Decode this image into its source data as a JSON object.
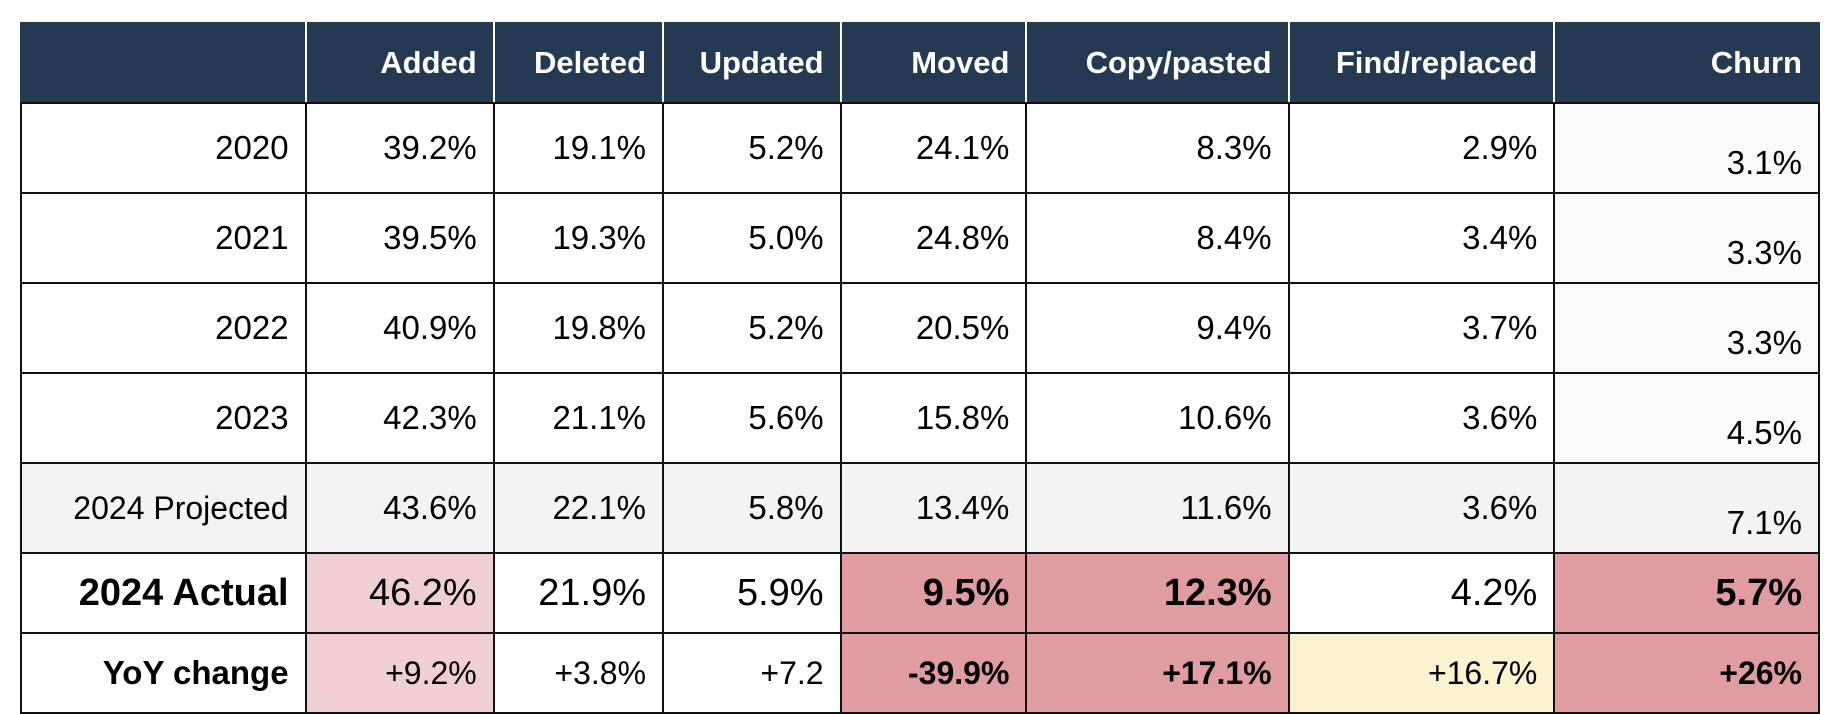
{
  "table": {
    "headers": [
      "",
      "Added",
      "Deleted",
      "Updated",
      "Moved",
      "Copy/pasted",
      "Find/replaced",
      "Churn"
    ],
    "rows": [
      {
        "label": "2020",
        "cells": [
          "39.2%",
          "19.1%",
          "5.2%",
          "24.1%",
          "8.3%",
          "2.9%",
          "3.1%"
        ]
      },
      {
        "label": "2021",
        "cells": [
          "39.5%",
          "19.3%",
          "5.0%",
          "24.8%",
          "8.4%",
          "3.4%",
          "3.3%"
        ]
      },
      {
        "label": "2022",
        "cells": [
          "40.9%",
          "19.8%",
          "5.2%",
          "20.5%",
          "9.4%",
          "3.7%",
          "3.3%"
        ]
      },
      {
        "label": "2023",
        "cells": [
          "42.3%",
          "21.1%",
          "5.6%",
          "15.8%",
          "10.6%",
          "3.6%",
          "4.5%"
        ]
      },
      {
        "label": "2024 Projected",
        "cells": [
          "43.6%",
          "22.1%",
          "5.8%",
          "13.4%",
          "11.6%",
          "3.6%",
          "7.1%"
        ]
      },
      {
        "label": "2024 Actual",
        "cells": [
          "46.2%",
          "21.9%",
          "5.9%",
          "9.5%",
          "12.3%",
          "4.2%",
          "5.7%"
        ]
      },
      {
        "label": "YoY change",
        "cells": [
          "+9.2%",
          "+3.8%",
          "+7.2",
          "-39.9%",
          "+17.1%",
          "+16.7%",
          "+26%"
        ]
      }
    ]
  },
  "colors": {
    "header_bg": "#243a53",
    "header_text": "#ffffff",
    "projected_row_bg": "#f3f3f3",
    "highlight_pink": "#f0cfd2",
    "highlight_red": "#e09c9f",
    "highlight_yellow": "#fbf3cf"
  }
}
